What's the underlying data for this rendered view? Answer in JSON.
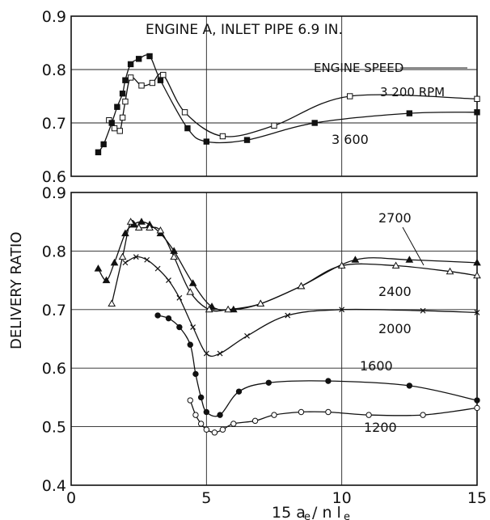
{
  "chart_data": [
    {
      "type": "line",
      "panel": "top",
      "title": "ENGINE A,  INLET PIPE 6.9 IN.",
      "legend_title": "ENGINE SPEED",
      "xlim": [
        0,
        15
      ],
      "ylim": [
        0.6,
        0.9
      ],
      "ytick_labels": [
        "0.6",
        "0.7",
        "0.8",
        "0.9"
      ],
      "grid": true,
      "series": [
        {
          "name": "3 200 RPM",
          "marker": "open-square",
          "x": [
            1.4,
            1.6,
            1.8,
            1.9,
            2.0,
            2.2,
            2.6,
            3.0,
            3.4,
            4.2,
            5.6,
            7.5,
            10.3,
            15.0
          ],
          "y": [
            0.705,
            0.69,
            0.685,
            0.71,
            0.74,
            0.785,
            0.77,
            0.775,
            0.79,
            0.72,
            0.675,
            0.695,
            0.75,
            0.745
          ]
        },
        {
          "name": "3 600",
          "marker": "filled-square",
          "x": [
            1.0,
            1.2,
            1.5,
            1.7,
            1.9,
            2.0,
            2.2,
            2.5,
            2.9,
            3.3,
            4.3,
            5.0,
            6.5,
            9.0,
            12.5,
            15.0
          ],
          "y": [
            0.645,
            0.66,
            0.7,
            0.73,
            0.755,
            0.78,
            0.81,
            0.82,
            0.825,
            0.78,
            0.69,
            0.665,
            0.668,
            0.7,
            0.718,
            0.72
          ]
        }
      ]
    },
    {
      "type": "line",
      "panel": "bottom",
      "ylabel": "DELIVERY RATIO",
      "xlabel": "15 a_e / n l_e",
      "xlim": [
        0,
        15
      ],
      "ylim": [
        0.4,
        0.9
      ],
      "xtick_labels": [
        "0",
        "5",
        "10",
        "15"
      ],
      "ytick_labels": [
        "0.4",
        "0.5",
        "0.6",
        "0.7",
        "0.8",
        "0.9"
      ],
      "grid": true,
      "series": [
        {
          "name": "2700",
          "marker": "filled-triangle",
          "x": [
            1.0,
            1.3,
            1.6,
            2.0,
            2.3,
            2.6,
            2.9,
            3.3,
            3.8,
            4.5,
            5.2,
            6.0,
            7.0,
            8.5,
            10.5,
            12.5,
            15.0
          ],
          "y": [
            0.77,
            0.75,
            0.78,
            0.83,
            0.845,
            0.85,
            0.845,
            0.83,
            0.8,
            0.745,
            0.705,
            0.7,
            0.71,
            0.74,
            0.785,
            0.785,
            0.78
          ]
        },
        {
          "name": "2400",
          "marker": "open-triangle",
          "x": [
            1.5,
            1.9,
            2.2,
            2.5,
            2.9,
            3.3,
            3.8,
            4.4,
            5.1,
            5.8,
            7.0,
            8.5,
            10.0,
            12.0,
            14.0,
            15.0
          ],
          "y": [
            0.71,
            0.79,
            0.85,
            0.84,
            0.84,
            0.835,
            0.79,
            0.73,
            0.7,
            0.7,
            0.71,
            0.74,
            0.775,
            0.775,
            0.765,
            0.758
          ]
        },
        {
          "name": "2000",
          "marker": "cross",
          "x": [
            2.0,
            2.4,
            2.8,
            3.2,
            3.6,
            4.0,
            4.5,
            5.0,
            5.5,
            6.5,
            8.0,
            10.0,
            13.0,
            15.0
          ],
          "y": [
            0.78,
            0.79,
            0.785,
            0.77,
            0.75,
            0.72,
            0.67,
            0.625,
            0.625,
            0.655,
            0.69,
            0.7,
            0.698,
            0.695
          ]
        },
        {
          "name": "1600",
          "marker": "filled-circle",
          "x": [
            3.2,
            3.6,
            4.0,
            4.4,
            4.6,
            4.8,
            5.0,
            5.5,
            6.2,
            7.3,
            9.5,
            12.5,
            15.0
          ],
          "y": [
            0.69,
            0.685,
            0.67,
            0.64,
            0.59,
            0.55,
            0.525,
            0.52,
            0.56,
            0.575,
            0.578,
            0.57,
            0.545
          ]
        },
        {
          "name": "1200",
          "marker": "open-circle",
          "x": [
            4.4,
            4.6,
            4.8,
            5.0,
            5.3,
            5.6,
            6.0,
            6.8,
            7.5,
            8.5,
            9.5,
            11.0,
            13.0,
            15.0
          ],
          "y": [
            0.545,
            0.52,
            0.505,
            0.495,
            0.49,
            0.495,
            0.505,
            0.51,
            0.52,
            0.525,
            0.525,
            0.52,
            0.52,
            0.532
          ]
        }
      ]
    }
  ]
}
